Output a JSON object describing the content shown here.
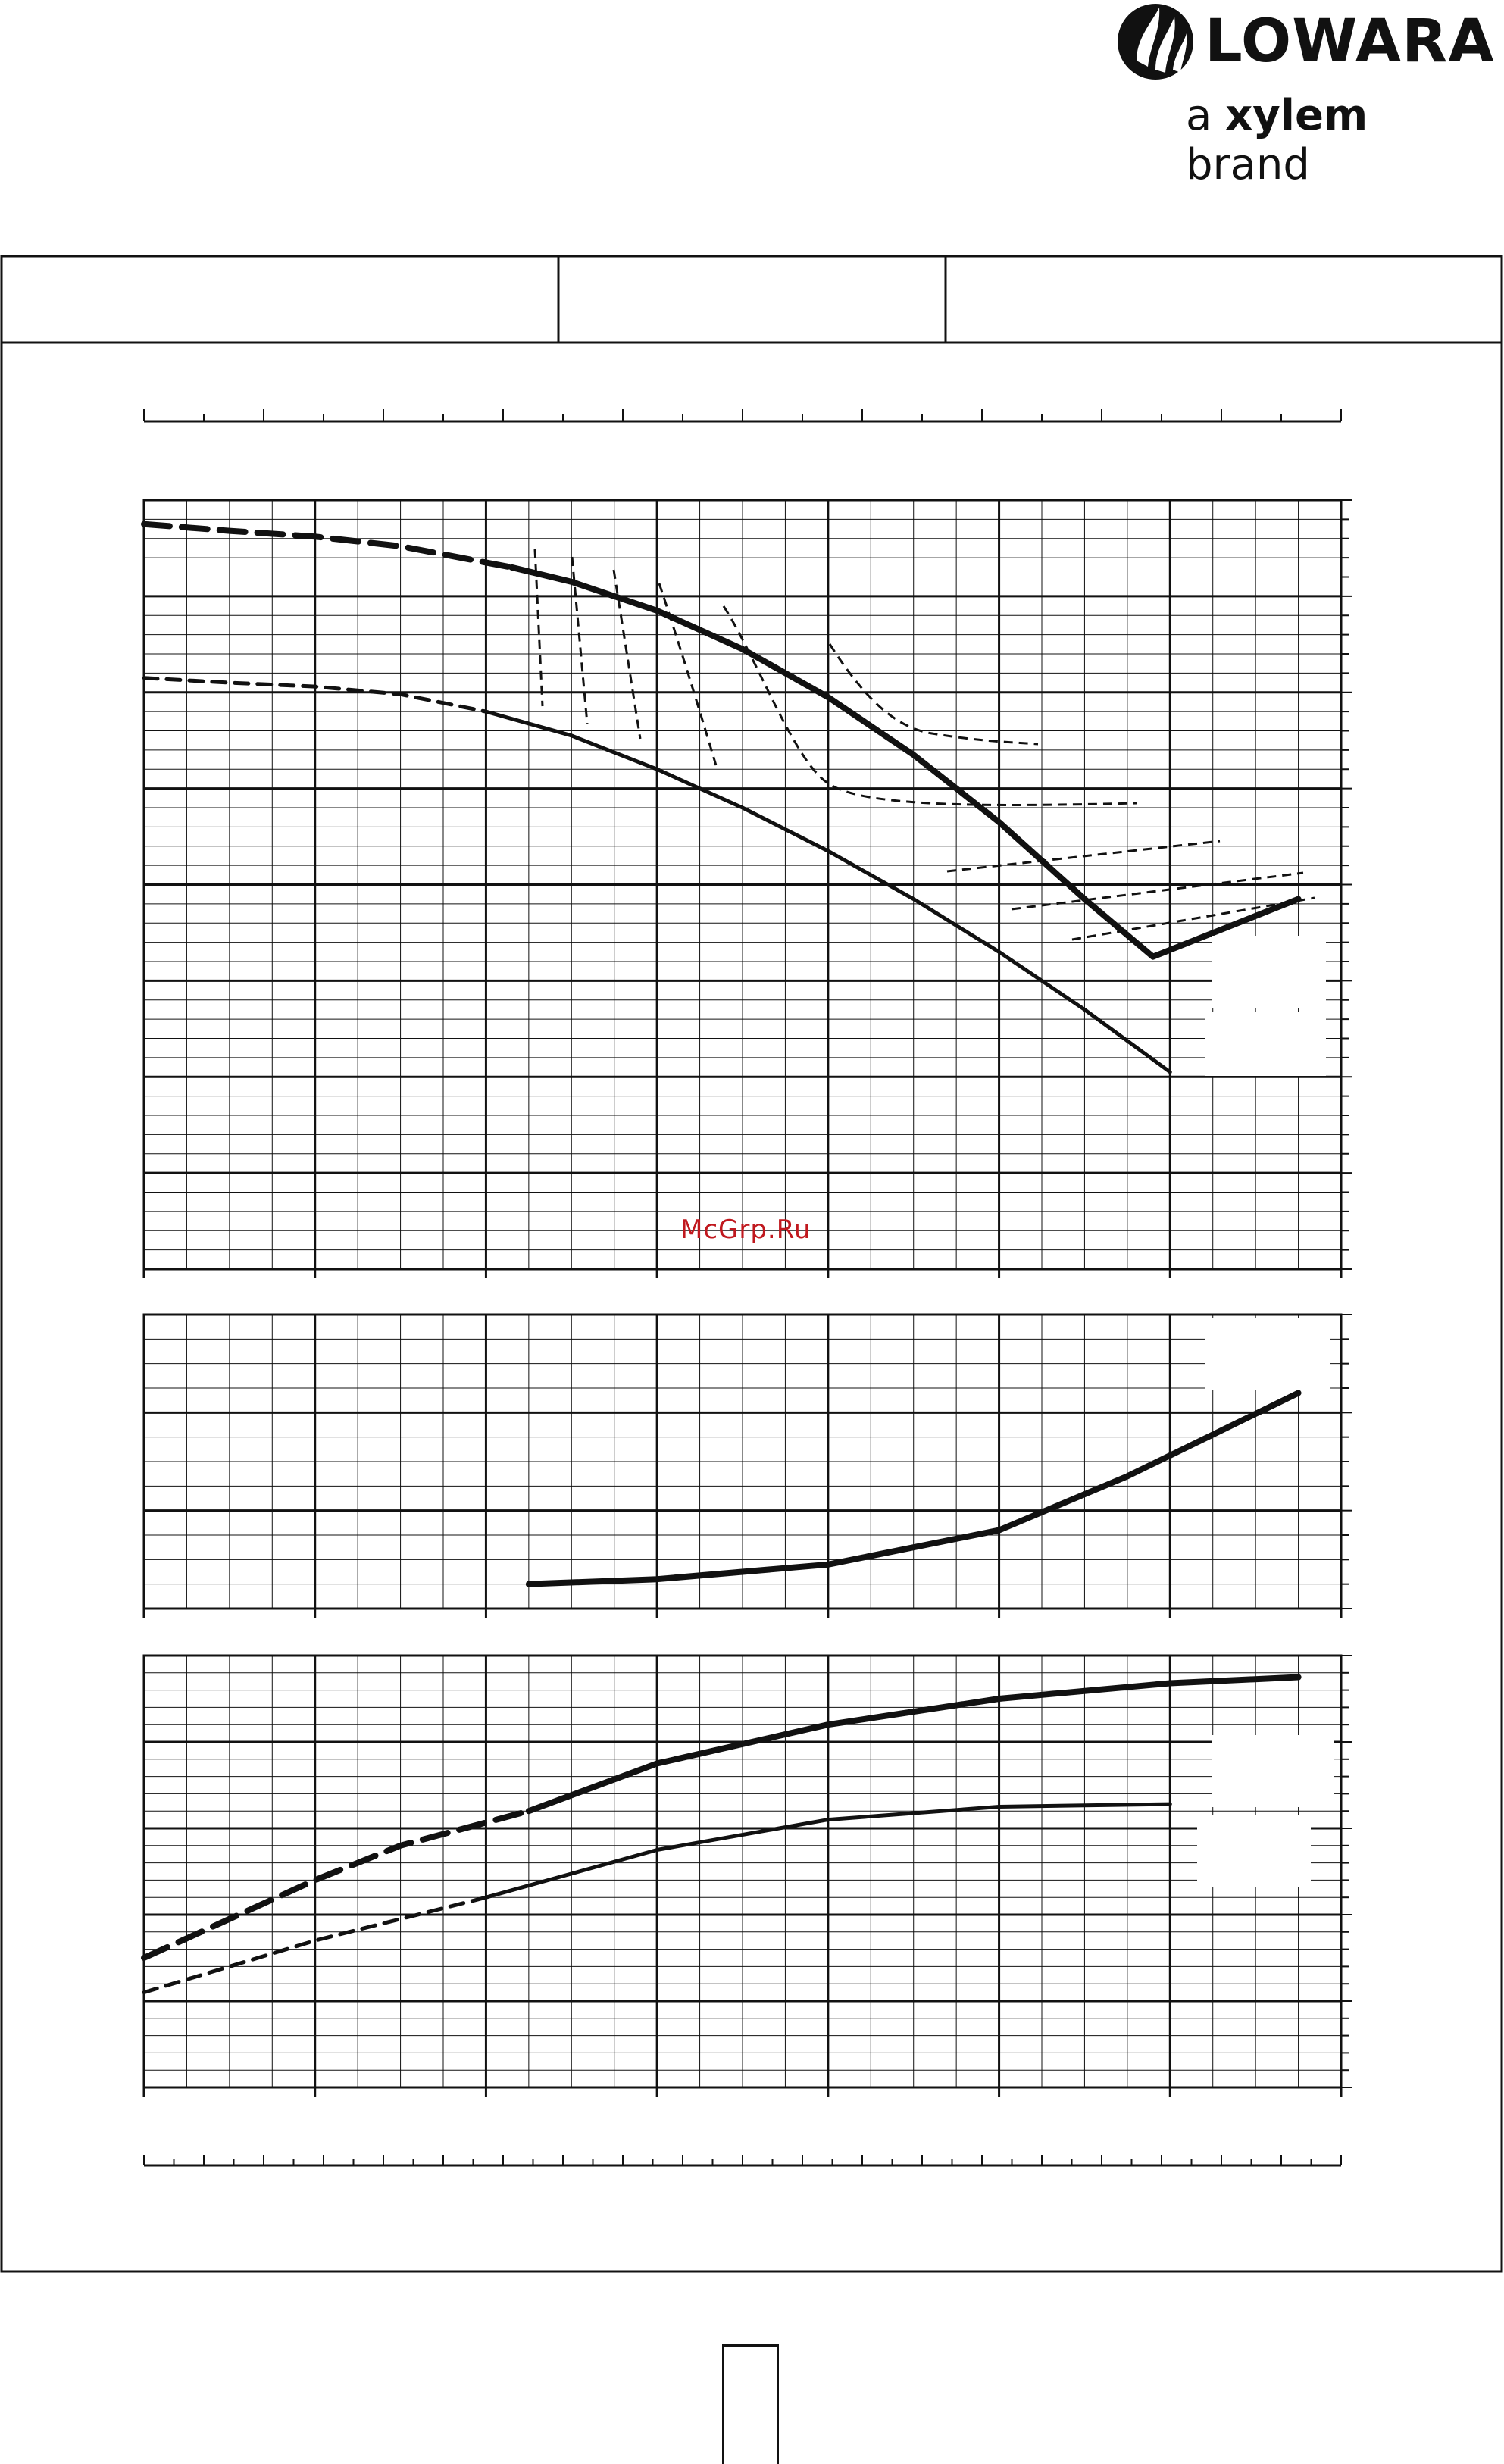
{
  "brand": {
    "name": "LOWARA",
    "tagline_prefix": "a ",
    "tagline_bold": "xylem",
    "tagline_suffix": " brand",
    "logo_icon": "water-drop-logo-icon"
  },
  "watermark": "McGrp.Ru",
  "page_number": "",
  "chart_data": [
    {
      "name": "head",
      "type": "line",
      "xlim": [
        0,
        140
      ],
      "ylim": [
        0,
        80
      ],
      "x_major_step": 20,
      "y_major_step": 10,
      "grid": true,
      "series": [
        {
          "style": "thick-dashed",
          "points": [
            [
              0,
              77.5
            ],
            [
              10,
              76.8
            ],
            [
              20,
              76.2
            ],
            [
              30,
              75.2
            ],
            [
              40,
              73.5
            ],
            [
              43,
              73.0
            ]
          ]
        },
        {
          "style": "thick",
          "points": [
            [
              43,
              73.0
            ],
            [
              50,
              71.5
            ],
            [
              60,
              68.5
            ],
            [
              70,
              64.5
            ],
            [
              80,
              59.5
            ],
            [
              90,
              53.5
            ],
            [
              100,
              46.5
            ],
            [
              110,
              38.5
            ],
            [
              118,
              32.5
            ],
            [
              135,
              38.5
            ]
          ]
        },
        {
          "style": "thin-dashed",
          "points": [
            [
              0,
              61.5
            ],
            [
              10,
              61.0
            ],
            [
              20,
              60.6
            ],
            [
              30,
              59.8
            ],
            [
              40,
              58.0
            ]
          ]
        },
        {
          "style": "thin",
          "points": [
            [
              40,
              58.0
            ],
            [
              50,
              55.5
            ],
            [
              60,
              52.0
            ],
            [
              70,
              48.0
            ],
            [
              80,
              43.5
            ],
            [
              90,
              38.5
            ],
            [
              100,
              33.0
            ],
            [
              110,
              27.0
            ],
            [
              120,
              20.5
            ]
          ]
        }
      ],
      "note": "two pump curves; iso-lines between them"
    },
    {
      "name": "power",
      "type": "line",
      "xlim": [
        0,
        140
      ],
      "ylim": [
        0,
        3
      ],
      "grid": true,
      "series": [
        {
          "style": "thick",
          "points": [
            [
              45,
              0.25
            ],
            [
              60,
              0.3
            ],
            [
              80,
              0.45
            ],
            [
              100,
              0.8
            ],
            [
              115,
              1.35
            ],
            [
              135,
              2.2
            ]
          ]
        }
      ]
    },
    {
      "name": "npsh",
      "type": "line",
      "xlim": [
        0,
        140
      ],
      "ylim": [
        0,
        5
      ],
      "grid": true,
      "series": [
        {
          "style": "thick-dashed",
          "points": [
            [
              0,
              1.5
            ],
            [
              10,
              1.95
            ],
            [
              20,
              2.4
            ],
            [
              30,
              2.8
            ],
            [
              45,
              3.2
            ]
          ]
        },
        {
          "style": "thick",
          "points": [
            [
              45,
              3.2
            ],
            [
              60,
              3.75
            ],
            [
              80,
              4.2
            ],
            [
              100,
              4.5
            ],
            [
              120,
              4.68
            ],
            [
              135,
              4.75
            ]
          ]
        },
        {
          "style": "thin-dashed",
          "points": [
            [
              0,
              1.1
            ],
            [
              10,
              1.4
            ],
            [
              20,
              1.7
            ],
            [
              30,
              1.95
            ],
            [
              40,
              2.2
            ]
          ]
        },
        {
          "style": "thin",
          "points": [
            [
              40,
              2.2
            ],
            [
              60,
              2.75
            ],
            [
              80,
              3.1
            ],
            [
              100,
              3.25
            ],
            [
              120,
              3.28
            ]
          ]
        }
      ]
    }
  ]
}
